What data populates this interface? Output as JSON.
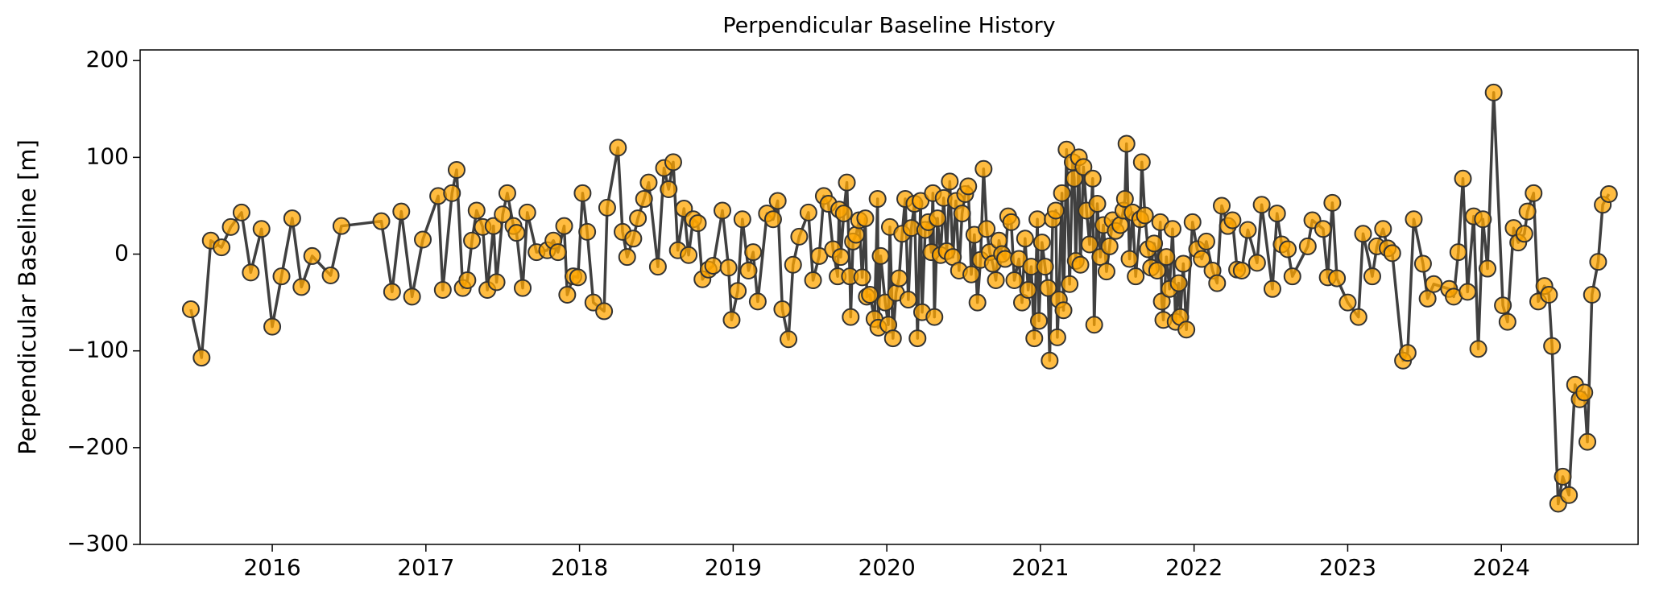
{
  "chart_data": {
    "type": "line",
    "title": "Perpendicular Baseline History",
    "ylabel": "Perpendicular Baseline [m]",
    "line_color": "#404040",
    "marker_color": "#ffa500",
    "marker_edge": "#333333",
    "xlim": [
      2015.14,
      2024.89
    ],
    "xticks": [
      2016,
      2017,
      2018,
      2019,
      2020,
      2021,
      2022,
      2023,
      2024
    ],
    "ylim": [
      -300,
      211
    ],
    "yticks": [
      {
        "value": -300,
        "label": "−300"
      },
      {
        "value": -200,
        "label": "−200"
      },
      {
        "value": -100,
        "label": "−100"
      },
      0,
      100,
      200
    ],
    "x": [
      2015.47,
      2015.54,
      2015.6,
      2015.67,
      2015.73,
      2015.8,
      2015.86,
      2015.93,
      2016.0,
      2016.06,
      2016.13,
      2016.19,
      2016.26,
      2016.38,
      2016.45,
      2016.71,
      2016.78,
      2016.84,
      2016.91,
      2016.98,
      2017.08,
      2017.11,
      2017.17,
      2017.2,
      2017.24,
      2017.27,
      2017.3,
      2017.33,
      2017.37,
      2017.4,
      2017.44,
      2017.46,
      2017.5,
      2017.53,
      2017.57,
      2017.59,
      2017.63,
      2017.66,
      2017.72,
      2017.79,
      2017.83,
      2017.86,
      2017.9,
      2017.92,
      2017.96,
      2017.99,
      2018.02,
      2018.05,
      2018.09,
      2018.16,
      2018.18,
      2018.25,
      2018.28,
      2018.31,
      2018.35,
      2018.38,
      2018.42,
      2018.45,
      2018.51,
      2018.55,
      2018.58,
      2018.61,
      2018.64,
      2018.68,
      2018.71,
      2018.74,
      2018.77,
      2018.8,
      2018.84,
      2018.87,
      2018.93,
      2018.97,
      2018.99,
      2019.03,
      2019.06,
      2019.1,
      2019.13,
      2019.16,
      2019.22,
      2019.26,
      2019.29,
      2019.32,
      2019.36,
      2019.39,
      2019.43,
      2019.49,
      2019.52,
      2019.56,
      2019.59,
      2019.62,
      2019.65,
      2019.68,
      2019.69,
      2019.7,
      2019.72,
      2019.74,
      2019.76,
      2019.765,
      2019.78,
      2019.8,
      2019.82,
      2019.84,
      2019.86,
      2019.87,
      2019.89,
      2019.92,
      2019.94,
      2019.945,
      2019.96,
      2019.99,
      2020.01,
      2020.02,
      2020.04,
      2020.06,
      2020.08,
      2020.1,
      2020.12,
      2020.14,
      2020.16,
      2020.18,
      2020.2,
      2020.22,
      2020.23,
      2020.25,
      2020.27,
      2020.29,
      2020.3,
      2020.31,
      2020.33,
      2020.35,
      2020.37,
      2020.39,
      2020.41,
      2020.43,
      2020.45,
      2020.47,
      2020.49,
      2020.51,
      2020.53,
      2020.55,
      2020.57,
      2020.59,
      2020.61,
      2020.63,
      2020.65,
      2020.67,
      2020.69,
      2020.71,
      2020.73,
      2020.75,
      2020.77,
      2020.79,
      2020.81,
      2020.83,
      2020.86,
      2020.88,
      2020.9,
      2020.92,
      2020.94,
      2020.96,
      2020.98,
      2020.99,
      2021.01,
      2021.03,
      2021.05,
      2021.06,
      2021.08,
      2021.1,
      2021.11,
      2021.12,
      2021.14,
      2021.15,
      2021.17,
      2021.19,
      2021.21,
      2021.22,
      2021.23,
      2021.25,
      2021.26,
      2021.28,
      2021.3,
      2021.32,
      2021.34,
      2021.35,
      2021.37,
      2021.39,
      2021.41,
      2021.43,
      2021.45,
      2021.47,
      2021.49,
      2021.52,
      2021.54,
      2021.55,
      2021.56,
      2021.58,
      2021.6,
      2021.62,
      2021.65,
      2021.66,
      2021.68,
      2021.7,
      2021.72,
      2021.74,
      2021.76,
      2021.78,
      2021.79,
      2021.8,
      2021.82,
      2021.84,
      2021.86,
      2021.88,
      2021.9,
      2021.91,
      2021.93,
      2021.95,
      2021.99,
      2022.02,
      2022.05,
      2022.08,
      2022.12,
      2022.15,
      2022.18,
      2022.22,
      2022.25,
      2022.28,
      2022.31,
      2022.35,
      2022.41,
      2022.44,
      2022.51,
      2022.54,
      2022.57,
      2022.61,
      2022.64,
      2022.74,
      2022.77,
      2022.84,
      2022.87,
      2022.9,
      2022.93,
      2023.0,
      2023.07,
      2023.1,
      2023.16,
      2023.19,
      2023.23,
      2023.26,
      2023.29,
      2023.36,
      2023.39,
      2023.43,
      2023.49,
      2023.52,
      2023.56,
      2023.66,
      2023.69,
      2023.72,
      2023.75,
      2023.78,
      2023.82,
      2023.85,
      2023.88,
      2023.91,
      2023.95,
      2024.01,
      2024.04,
      2024.08,
      2024.11,
      2024.15,
      2024.17,
      2024.21,
      2024.24,
      2024.28,
      2024.31,
      2024.33,
      2024.37,
      2024.4,
      2024.44,
      2024.48,
      2024.51,
      2024.54,
      2024.56,
      2024.59,
      2024.63,
      2024.66,
      2024.7
    ],
    "values": [
      -57,
      -107,
      14,
      7,
      28,
      43,
      -19,
      26,
      -75,
      -23,
      37,
      -34,
      -2,
      -22,
      29,
      34,
      -39,
      44,
      -44,
      15,
      60,
      -37,
      63,
      87,
      -35,
      -27,
      14,
      45,
      28,
      -37,
      29,
      -29,
      41,
      63,
      29,
      22,
      -35,
      43,
      2,
      4,
      14,
      2,
      29,
      -42,
      -23,
      -24,
      63,
      23,
      -50,
      -59,
      48,
      110,
      23,
      -3,
      16,
      37,
      57,
      74,
      -13,
      89,
      67,
      95,
      4,
      47,
      -1,
      36,
      32,
      -26,
      -16,
      -12,
      45,
      -14,
      -68,
      -38,
      36,
      -17,
      2,
      -49,
      42,
      36,
      55,
      -57,
      -88,
      -11,
      18,
      43,
      -27,
      -2,
      60,
      52,
      5,
      -23,
      46,
      -3,
      42,
      74,
      -23,
      -65,
      13,
      20,
      35,
      -24,
      37,
      -44,
      -42,
      -67,
      57,
      -76,
      -2,
      -50,
      -73,
      28,
      -87,
      -40,
      -25,
      21,
      57,
      -47,
      27,
      52,
      -87,
      55,
      -60,
      25,
      33,
      2,
      63,
      -65,
      37,
      -1,
      58,
      3,
      75,
      -3,
      55,
      -17,
      42,
      62,
      70,
      -21,
      20,
      -50,
      -6,
      88,
      26,
      2,
      -10,
      -27,
      14,
      0,
      -5,
      39,
      33,
      -27,
      -5,
      -50,
      16,
      -37,
      -13,
      -87,
      36,
      -69,
      12,
      -13,
      -35,
      -110,
      36,
      45,
      -86,
      -47,
      63,
      -58,
      108,
      -31,
      95,
      78,
      -7,
      100,
      -11,
      90,
      45,
      10,
      78,
      -73,
      52,
      -3,
      30,
      -18,
      8,
      35,
      24,
      30,
      45,
      57,
      114,
      -5,
      43,
      -23,
      36,
      95,
      40,
      5,
      -14,
      11,
      -17,
      33,
      -49,
      -68,
      -3,
      -36,
      26,
      -70,
      -30,
      -65,
      -10,
      -78,
      33,
      5,
      -5,
      13,
      -17,
      -30,
      50,
      29,
      35,
      -16,
      -17,
      25,
      -9,
      51,
      -36,
      42,
      10,
      5,
      -23,
      8,
      35,
      26,
      -24,
      53,
      -25,
      -50,
      -65,
      21,
      -23,
      8,
      26,
      6,
      1,
      -110,
      -102,
      36,
      -10,
      -46,
      -31,
      -36,
      -44,
      2,
      78,
      -39,
      39,
      -98,
      36,
      -15,
      167,
      -53,
      -70,
      27,
      12,
      21,
      44,
      63,
      -49,
      -33,
      -42,
      -95,
      -258,
      -230,
      -249,
      -135,
      -150,
      -143,
      -194,
      -42,
      -8,
      51,
      62
    ]
  }
}
